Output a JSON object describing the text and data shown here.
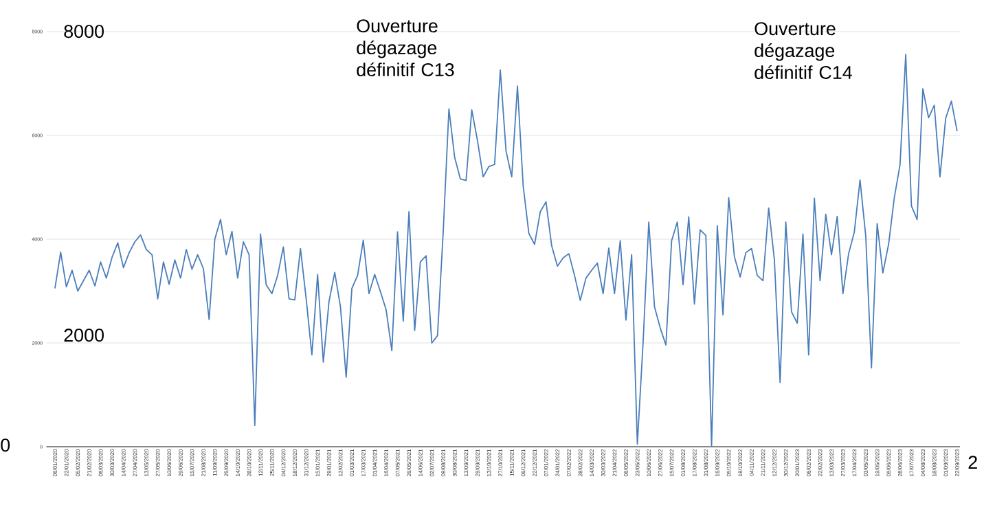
{
  "chart_data": {
    "type": "line",
    "categories": [
      "06/01/2020",
      null,
      "22/01/2020",
      null,
      "05/02/2020",
      null,
      "21/02/2020",
      null,
      "06/03/2020",
      null,
      "30/03/2020",
      null,
      "14/04/2020",
      null,
      "27/04/2020",
      null,
      "13/05/2020",
      null,
      "27/05/2020",
      null,
      "10/06/2020",
      null,
      "29/06/2020",
      null,
      "15/07/2020",
      null,
      "21/08/2020",
      null,
      "11/09/2020",
      null,
      "25/09/2020",
      null,
      "14/10/2020",
      null,
      "28/10/2020",
      null,
      "12/11/2020",
      null,
      "25/11/2020",
      null,
      "04/12/2020",
      null,
      "18/12/2020",
      null,
      "31/12/2020",
      null,
      "15/01/2021",
      null,
      "29/01/2021",
      null,
      "12/02/2021",
      null,
      "01/03/2021",
      null,
      "17/03/2021",
      null,
      "01/04/2021",
      null,
      "16/04/2021",
      null,
      "07/05/2021",
      null,
      "26/05/2021",
      null,
      "14/06/2021",
      null,
      "02/07/2021",
      null,
      "09/08/2021",
      null,
      "30/08/2021",
      null,
      "13/09/2021",
      null,
      "29/09/2021",
      null,
      "13/10/2021",
      null,
      "27/10/2021",
      null,
      "15/11/2021",
      null,
      "06/12/2021",
      null,
      "22/12/2021",
      null,
      "07/01/2022",
      null,
      "24/01/2022",
      null,
      "07/02/2022",
      null,
      "28/02/2022",
      null,
      "14/03/2022",
      null,
      "30/03/2022",
      null,
      "21/04/2022",
      null,
      "06/05/2022",
      null,
      "23/05/2022",
      null,
      "10/06/2022",
      null,
      "27/06/2022",
      null,
      "15/07/2022",
      null,
      "01/08/2022",
      null,
      "17/08/2022",
      null,
      "31/08/2022",
      null,
      "16/09/2022",
      null,
      "05/10/2022",
      null,
      "19/10/2022",
      null,
      "04/11/2022",
      null,
      "21/11/2022",
      null,
      "12/12/2022",
      null,
      "30/12/2022",
      null,
      "20/01/2023",
      null,
      "06/02/2023",
      null,
      "22/02/2023",
      null,
      "13/03/2023",
      null,
      "27/03/2023",
      null,
      "17/04/2023",
      null,
      "03/05/2023",
      null,
      "19/05/2023",
      null,
      "09/06/2023",
      null,
      "28/06/2023",
      null,
      "17/07/2023",
      null,
      "04/08/2023",
      null,
      "18/08/2023",
      null,
      "01/09/2023",
      null,
      "22/09/2023"
    ],
    "values": [
      3050,
      3750,
      3080,
      3400,
      3000,
      3200,
      3400,
      3100,
      3560,
      3250,
      3650,
      3930,
      3450,
      3740,
      3950,
      4080,
      3800,
      3700,
      2850,
      3560,
      3130,
      3600,
      3250,
      3800,
      3420,
      3700,
      3430,
      2450,
      4000,
      4380,
      3700,
      4150,
      3250,
      3950,
      3700,
      410,
      4100,
      3120,
      2950,
      3300,
      3850,
      2850,
      2830,
      3820,
      2850,
      1770,
      3320,
      1630,
      2800,
      3360,
      2700,
      1340,
      3050,
      3300,
      3980,
      2950,
      3320,
      2990,
      2640,
      1850,
      4140,
      2420,
      4530,
      2240,
      3560,
      3680,
      2000,
      2140,
      4150,
      6510,
      5580,
      5160,
      5130,
      6490,
      5900,
      5200,
      5400,
      5440,
      7260,
      5700,
      5200,
      6950,
      5030,
      4110,
      3900,
      4530,
      4720,
      3870,
      3480,
      3640,
      3720,
      3300,
      2820,
      3250,
      3400,
      3540,
      2950,
      3830,
      2950,
      3970,
      2440,
      3700,
      50,
      2000,
      4330,
      2700,
      2290,
      1960,
      3970,
      4330,
      3120,
      4430,
      2750,
      4180,
      4070,
      20,
      4260,
      2540,
      4800,
      3660,
      3270,
      3740,
      3820,
      3300,
      3200,
      4600,
      3600,
      1240,
      4330,
      2600,
      2380,
      4100,
      1770,
      4790,
      3200,
      4480,
      3700,
      4440,
      2950,
      3720,
      4140,
      5140,
      4060,
      1520,
      4300,
      3350,
      3900,
      4800,
      5430,
      7560,
      4640,
      4380,
      6900,
      6340,
      6580,
      5200,
      6330,
      6660,
      6080
    ],
    "color": "#4a7ebb",
    "ylim": [
      0,
      8000
    ],
    "yticks": [
      0,
      2000,
      4000,
      6000,
      8000
    ],
    "grid": "y",
    "annotations": [
      "Ouverture dégazage définitif C13",
      "Ouverture dégazage définitif C14",
      "8000",
      "2000",
      "0",
      "2"
    ]
  }
}
